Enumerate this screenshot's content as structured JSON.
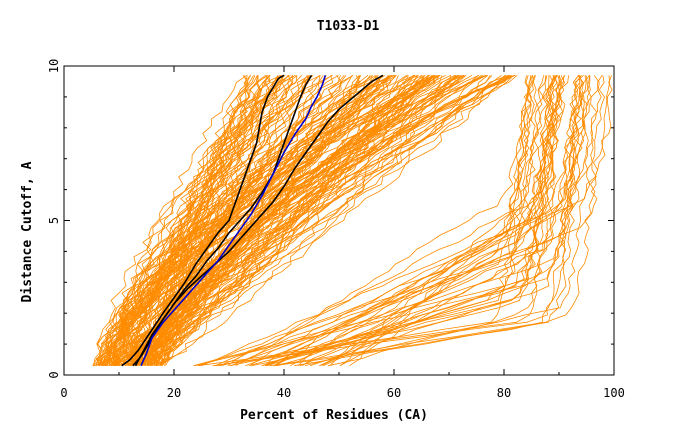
{
  "chart_data": {
    "type": "line",
    "title": "T1033-D1",
    "xlabel": "Percent of Residues (CA)",
    "ylabel": "Distance Cutoff, A",
    "xlim": [
      0,
      100
    ],
    "ylim": [
      0,
      10
    ],
    "x_ticks": [
      0,
      20,
      40,
      60,
      80,
      100
    ],
    "y_ticks": [
      0,
      5,
      10
    ],
    "grid": false,
    "legend": "none",
    "colors": {
      "background": "#ffffff",
      "orange": "#ff8c00",
      "black": "#000000",
      "blue": "#0000cd"
    },
    "highlight_series": [
      {
        "color": "#000000",
        "x": [
          10.5,
          12,
          13.5,
          15,
          16.5,
          18,
          20,
          22,
          24,
          26,
          28,
          30,
          31,
          32,
          33,
          34,
          35,
          35.5,
          36,
          37,
          38,
          39,
          40
        ],
        "y": [
          0.3,
          0.5,
          0.8,
          1.2,
          1.6,
          2.0,
          2.5,
          3.0,
          3.6,
          4.1,
          4.6,
          5.0,
          5.5,
          6.0,
          6.5,
          7.0,
          7.5,
          8.0,
          8.5,
          9.0,
          9.3,
          9.6,
          9.7
        ]
      },
      {
        "color": "#000000",
        "x": [
          12.5,
          14,
          16,
          18,
          20,
          22,
          24,
          26,
          28,
          30,
          32,
          34,
          36,
          38,
          39,
          40,
          41,
          42,
          43,
          44,
          45
        ],
        "y": [
          0.3,
          0.6,
          1.2,
          1.8,
          2.3,
          2.8,
          3.2,
          3.7,
          4.1,
          4.6,
          5.0,
          5.4,
          5.9,
          6.5,
          7.0,
          7.5,
          8.0,
          8.5,
          9.0,
          9.4,
          9.7
        ]
      },
      {
        "color": "#000000",
        "x": [
          13,
          14.5,
          16,
          18,
          20,
          22.5,
          25,
          27.5,
          30,
          32,
          34,
          36,
          38,
          40,
          42,
          44,
          46,
          48,
          50,
          52,
          54,
          56,
          58
        ],
        "y": [
          0.3,
          0.8,
          1.3,
          1.8,
          2.3,
          2.8,
          3.2,
          3.6,
          4.0,
          4.4,
          4.8,
          5.2,
          5.6,
          6.1,
          6.7,
          7.2,
          7.7,
          8.2,
          8.6,
          8.9,
          9.2,
          9.5,
          9.7
        ]
      },
      {
        "color": "#0000cd",
        "x": [
          14,
          15,
          16,
          18,
          20,
          22,
          24,
          26,
          28,
          30,
          32,
          34,
          36,
          38,
          40,
          42,
          44,
          45,
          46,
          47,
          47.5
        ],
        "y": [
          0.3,
          0.7,
          1.2,
          1.7,
          2.1,
          2.5,
          2.9,
          3.3,
          3.7,
          4.2,
          4.7,
          5.2,
          5.8,
          6.5,
          7.2,
          7.8,
          8.3,
          8.7,
          9.0,
          9.4,
          9.7
        ]
      }
    ]
  }
}
